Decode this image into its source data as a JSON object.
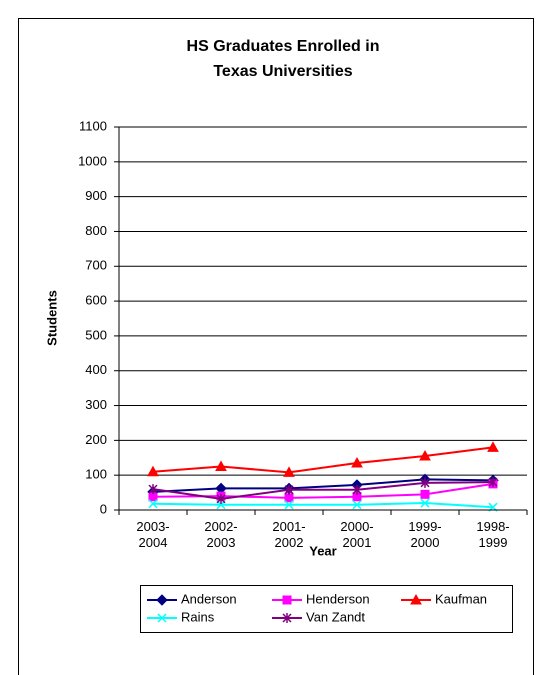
{
  "chart_data": {
    "type": "line",
    "title": [
      "HS Graduates Enrolled in",
      "Texas Universities"
    ],
    "x_label": "Year",
    "y_label": "Students",
    "categories": [
      "2003-2004",
      "2002-2003",
      "2001-2002",
      "2000-2001",
      "1999-2000",
      "1998-1999"
    ],
    "series": [
      {
        "name": "Anderson",
        "color": "#000080",
        "marker": "diamond",
        "values": [
          52,
          62,
          62,
          72,
          88,
          85
        ]
      },
      {
        "name": "Henderson",
        "color": "#FF00FF",
        "marker": "square",
        "values": [
          38,
          40,
          35,
          38,
          45,
          75
        ]
      },
      {
        "name": "Kaufman",
        "color": "#FF0000",
        "marker": "triangle",
        "values": [
          110,
          125,
          108,
          135,
          155,
          180
        ]
      },
      {
        "name": "Rains",
        "color": "#00FFFF",
        "marker": "x",
        "values": [
          18,
          15,
          15,
          15,
          20,
          8
        ]
      },
      {
        "name": "Van Zandt",
        "color": "#800080",
        "marker": "asterisk",
        "values": [
          60,
          32,
          58,
          58,
          78,
          80
        ]
      }
    ],
    "ylim": [
      0,
      1100
    ],
    "yticks": [
      0,
      100,
      200,
      300,
      400,
      500,
      600,
      700,
      800,
      900,
      1000,
      1100
    ],
    "grid": true,
    "legend": "bottom"
  }
}
